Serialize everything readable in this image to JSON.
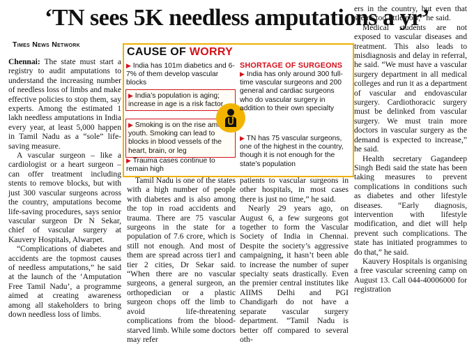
{
  "headline": "‘TN sees 5K needless amputations a yr’",
  "byline": "Times News Network",
  "colors": {
    "accent_red": "#d3121b",
    "box_yellow": "#f0b000"
  },
  "infobox": {
    "title_part1": "CAUSE OF ",
    "title_part2": "WORRY",
    "icon": "doctor-icon",
    "left_items": [
      "India has 101m diabetics and 6-7% of them develop vascular blocks",
      "India’s population is aging; increase in age is a risk factor",
      "Smoking is on the rise among youth. Smoking can lead to blocks in blood vessels of the heart, brain, or leg",
      "Trauma cases continue to remain high"
    ],
    "right_title": "SHORTAGE OF SURGEONS",
    "right_items": [
      "India has only around 300 full-time vascular surgeons and 200 general and cardiac surgeons who do vascular surgery in addition to their own specialty",
      "TN has 75 vascular surgeons, one of the highest in the country, though it is not enough for the state’s population"
    ]
  },
  "col1": {
    "dateline": "Chennai:",
    "p1_rest": " The state must start a registry to audit amputations to understand the increasing number of needless loss of limbs and make effective policies to stop them, say experts. Among the estimated 1 lakh needless amputations in India every year, at least 5,000 happen in Tamil Nadu as a “sole” life-saving measure.",
    "p2": "A vascular surgeon – like a cardiologist or a heart surgeon – can offer treatment including stents to remove blocks, but with just 300 vascular surgeons across the country, amputations become life-saving procedures, says senior vascular surgeon Dr N Sekar, chief of vascular surgery at Kauvery Hospitals, Alwarpet.",
    "p3": "“Complications of diabetes and accidents are the topmost causes of needless amputations,” he said at the launch of the ‘Amputation Free Tamil Nadu’, a programme aimed at creating awareness among all stakeholders to bring down needless loss of limbs."
  },
  "col2": {
    "p1": "Tamil Nadu is one of the states with a high number of people with diabetes and is also among the top in road accidents and trauma. There are 75 vascular surgeons in the state for a population of 7.6 crore, which is still not enough. And most of them are spread across tier1 and tier 2 cities, Dr Sekar said. “When there are no vascular surgeons, a general surgeon, an orthopedician or a plastic surgeon chops off the limb to avoid life-threatening complications from the blood-starved limb. While some doctors may refer"
  },
  "col3": {
    "p1": "patients to vascular surgeons in other hospitals, in most cases there is just no time,” he said.",
    "p2": "Nearly 29 years ago, on August 6, a few surgeons got together to form the Vascular Society of India in Chennai. Despite the society’s aggressive campaigning, it hasn’t been able to increase the number of super specialty seats drastically. Even the premier central institutes like AIIMS Delhi and PGI Chandigarh do not have a separate vascular surgery department. “Tamil Nadu is better off compared to several oth-"
  },
  "col4": {
    "p1": "ers in the country, but even that seems too little now,” he said.",
    "p2": "Medical students are not exposed to vascular diseases and treatment. This also leads to misdiagnosis and delay in referral, he said. “We must have a vascular surgery department in all medical colleges and run it as a department of vascular and endovascular surgery. Cardiothoracic surgery must be delinked from vascular surgery. We must train more doctors in vascular surgery as the demand is expected to increase,” he said.",
    "p3": "Health secretary Gagandeep Singh Bedi said the state has been taking measures to prevent complications in conditions such as diabetes and other lifestyle diseases. “Early diagnosis, intervention with lifestyle modification, and diet will help prevent such complications. The state has initiated programmes to do that,” he said.",
    "p4": "Kauvery Hospitals is organising a free vascular screening camp on August 13. Call 044-40006000 for registration"
  }
}
